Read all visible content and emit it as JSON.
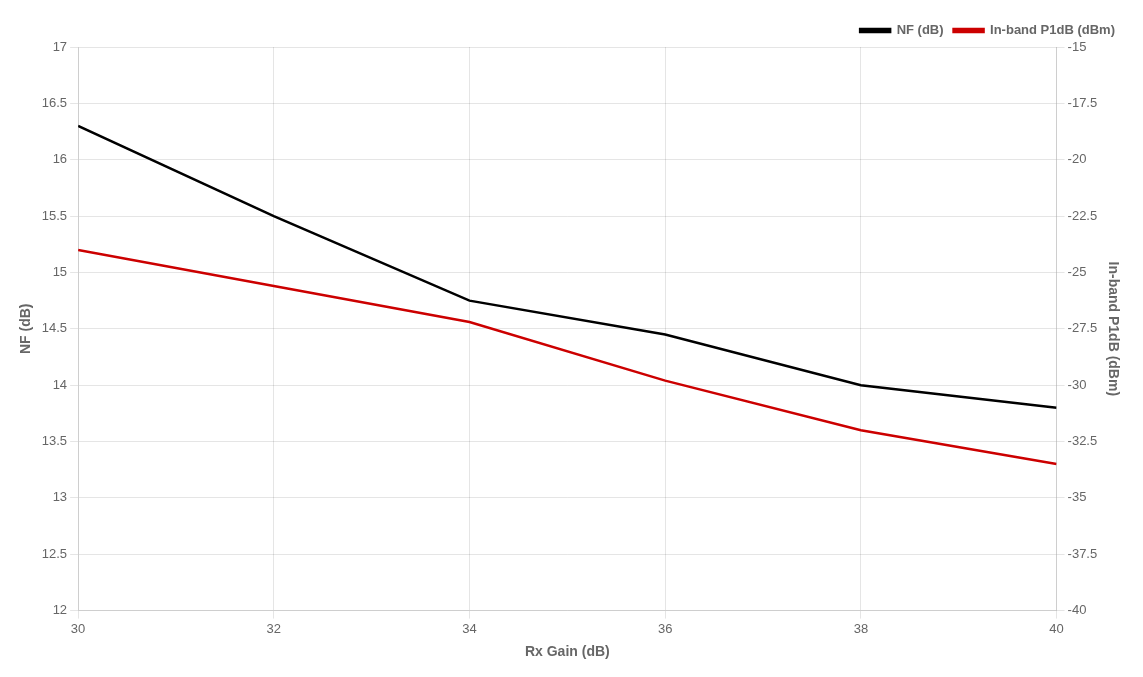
{
  "chart_data": {
    "type": "line",
    "xlabel": "Rx Gain (dB)",
    "ylabel": "NF (dB)",
    "y2label": "In-band P1dB (dBm)",
    "x": [
      30,
      32,
      34,
      36,
      38,
      40
    ],
    "series": [
      {
        "name": "NF (dB)",
        "color": "#000000",
        "values": [
          16.3,
          15.5,
          14.75,
          14.45,
          14.0,
          13.8
        ]
      },
      {
        "name": "In-band P1dB (dBm)",
        "color": "#cc0000",
        "values": [
          -24.0,
          -25.6,
          -27.2,
          -29.8,
          -32.0,
          -33.5
        ],
        "axis": "y2"
      }
    ],
    "xlim": [
      30,
      40
    ],
    "xticks": [
      30,
      32,
      34,
      36,
      38,
      40
    ],
    "ylim": [
      12,
      17
    ],
    "yticks": [
      12,
      12.5,
      13,
      13.5,
      14,
      14.5,
      15,
      15.5,
      16,
      16.5,
      17
    ],
    "y2lim": [
      -40,
      -15
    ],
    "y2ticks": [
      -40,
      -37.5,
      -35,
      -32.5,
      -30,
      -27.5,
      -25,
      -22.5,
      -20,
      -17.5,
      -15
    ],
    "grid": true,
    "legend": "upper right"
  }
}
